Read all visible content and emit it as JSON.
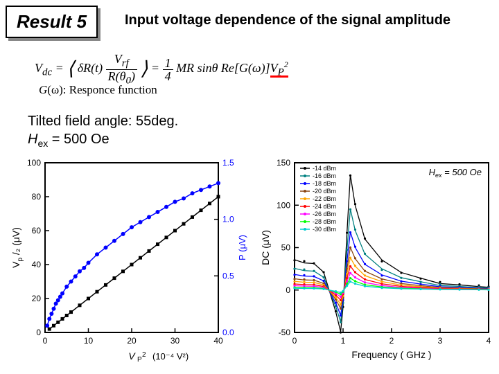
{
  "header": {
    "result_label": "Result 5",
    "title": "Input voltage dependence of the signal amplitude"
  },
  "equation": {
    "lhs": "V_{dc} =",
    "avg_open": "⟨",
    "term1": "δR(t)",
    "frac_top": "V_{rf}",
    "frac_bot": "R(θ₀)",
    "avg_close": "⟩",
    "rhs_prefix": "= ¼ MR sinθ Re[G(ω)]",
    "vp2": "V_P²"
  },
  "response": {
    "g": "G(ω)",
    "label": ": Responce function"
  },
  "params": {
    "tilt": "Tilted field angle: 55deg.",
    "hex_sym": "H",
    "hex_sub": "ex",
    "hex_val": " = 500 Oe"
  },
  "chart1": {
    "type": "scatter-line",
    "xlabel": "V_P² (10⁻⁴ V²)",
    "ylabel_left": "V_p /₂  (μV)",
    "ylabel_right": "P (μV)",
    "xlim": [
      0,
      40
    ],
    "xtick_step": 10,
    "ylim_left": [
      0,
      100
    ],
    "ytick_left_step": 20,
    "ylim_right": [
      0,
      1.5
    ],
    "ytick_right_step": 0.5,
    "background_color": "#ffffff",
    "axis_color": "#000000",
    "axis_width": 2,
    "series": [
      {
        "name": "blue-curve",
        "color": "#0000ff",
        "marker": "circle",
        "x": [
          0.5,
          1,
          1.5,
          2,
          2.5,
          3,
          3.5,
          4,
          5,
          6,
          7,
          8,
          9,
          10,
          12,
          14,
          16,
          18,
          20,
          22,
          24,
          26,
          28,
          30,
          32,
          34,
          36,
          38,
          40
        ],
        "y": [
          4,
          8,
          11,
          14,
          17,
          19,
          21,
          23,
          27,
          30,
          33,
          36,
          38,
          41,
          46,
          50,
          54,
          58,
          62,
          65,
          68,
          71,
          74,
          77,
          79,
          82,
          84,
          86,
          88
        ]
      },
      {
        "name": "black-line",
        "color": "#000000",
        "marker": "square",
        "x": [
          1,
          2,
          3,
          4,
          5,
          6,
          8,
          10,
          12,
          14,
          16,
          18,
          20,
          22,
          24,
          26,
          28,
          30,
          32,
          34,
          36,
          38,
          40
        ],
        "y": [
          2,
          4,
          6,
          8,
          10,
          12,
          16,
          20,
          24,
          28,
          32,
          36,
          40,
          44,
          48,
          52,
          56,
          60,
          64,
          68,
          72,
          76,
          80
        ]
      }
    ]
  },
  "chart2": {
    "type": "line",
    "xlabel": "Frequency ( GHz )",
    "ylabel": "DC  (μV)",
    "xlim": [
      0,
      4
    ],
    "xtick_step": 1,
    "ylim": [
      -50,
      150
    ],
    "ytick_step": 50,
    "background_color": "#ffffff",
    "axis_color": "#000000",
    "axis_width": 2,
    "annotation": "H_ex = 500 Oe",
    "annotation_fontsize": 13,
    "legend_fontsize": 9,
    "series": [
      {
        "name": "-14 dBm",
        "color": "#000000",
        "peak": 135,
        "dip": -50,
        "base": 35
      },
      {
        "name": "-16 dBm",
        "color": "#008080",
        "peak": 95,
        "dip": -38,
        "base": 25
      },
      {
        "name": "-18 dBm",
        "color": "#0000ff",
        "peak": 68,
        "dip": -30,
        "base": 18
      },
      {
        "name": "-20 dBm",
        "color": "#8b4513",
        "peak": 50,
        "dip": -22,
        "base": 13
      },
      {
        "name": "-22 dBm",
        "color": "#ffa500",
        "peak": 38,
        "dip": -17,
        "base": 10
      },
      {
        "name": "-24 dBm",
        "color": "#ff0000",
        "peak": 28,
        "dip": -12,
        "base": 7
      },
      {
        "name": "-26 dBm",
        "color": "#ff00ff",
        "peak": 20,
        "dip": -8,
        "base": 5
      },
      {
        "name": "-28 dBm",
        "color": "#00ff00",
        "peak": 14,
        "dip": -5,
        "base": 3
      },
      {
        "name": "-30 dBm",
        "color": "#00ced1",
        "peak": 10,
        "dip": -3,
        "base": 2
      }
    ]
  }
}
